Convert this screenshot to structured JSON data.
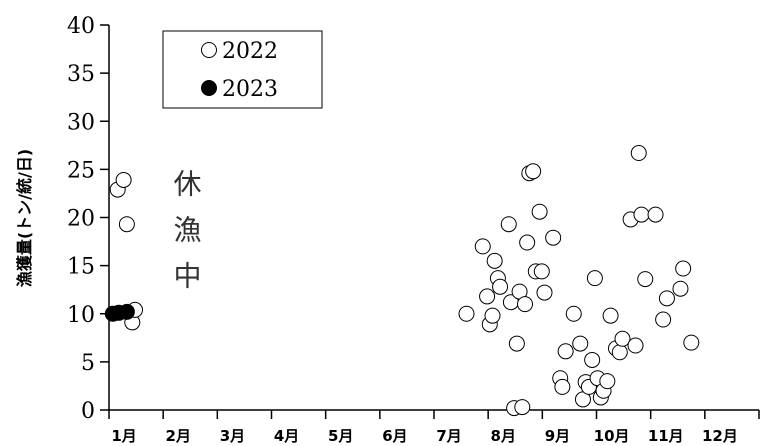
{
  "chart_data": {
    "type": "scatter",
    "title": "",
    "xlabel": "",
    "ylabel": "漁獲量(トン/統/日)",
    "ylim": [
      0,
      40
    ],
    "yticks": [
      0,
      5,
      10,
      15,
      20,
      25,
      30,
      35,
      40
    ],
    "xlim": [
      1,
      13
    ],
    "month_labels": [
      "1月",
      "2月",
      "3月",
      "4月",
      "5月",
      "6月",
      "7月",
      "8月",
      "9月",
      "10月",
      "11月",
      "12月"
    ],
    "grid": false,
    "legend": "top-left",
    "annotation": {
      "text": "休漁中",
      "x": 2.45,
      "y": 22.5
    },
    "series": [
      {
        "name": "2022",
        "marker": "open-circle",
        "points": [
          [
            1.16,
            22.9
          ],
          [
            1.27,
            23.9
          ],
          [
            1.33,
            19.3
          ],
          [
            1.43,
            9.1
          ],
          [
            1.48,
            10.4
          ],
          [
            7.6,
            10.0
          ],
          [
            7.9,
            17.0
          ],
          [
            7.98,
            11.8
          ],
          [
            8.03,
            8.9
          ],
          [
            8.08,
            9.8
          ],
          [
            8.12,
            15.5
          ],
          [
            8.18,
            13.7
          ],
          [
            8.22,
            12.8
          ],
          [
            8.38,
            19.3
          ],
          [
            8.42,
            11.2
          ],
          [
            8.48,
            0.2
          ],
          [
            8.53,
            6.9
          ],
          [
            8.58,
            12.3
          ],
          [
            8.63,
            0.3
          ],
          [
            8.68,
            11.0
          ],
          [
            8.72,
            17.4
          ],
          [
            8.76,
            24.6
          ],
          [
            8.83,
            24.8
          ],
          [
            8.88,
            14.4
          ],
          [
            8.95,
            20.6
          ],
          [
            8.99,
            14.4
          ],
          [
            9.04,
            12.2
          ],
          [
            9.2,
            17.9
          ],
          [
            9.33,
            3.3
          ],
          [
            9.37,
            2.4
          ],
          [
            9.43,
            6.1
          ],
          [
            9.58,
            10.0
          ],
          [
            9.7,
            6.9
          ],
          [
            9.75,
            1.1
          ],
          [
            9.8,
            2.9
          ],
          [
            9.86,
            2.4
          ],
          [
            9.92,
            5.2
          ],
          [
            9.97,
            13.7
          ],
          [
            10.02,
            3.3
          ],
          [
            10.08,
            1.3
          ],
          [
            10.13,
            2.0
          ],
          [
            10.2,
            3.0
          ],
          [
            10.26,
            9.8
          ],
          [
            10.36,
            6.4
          ],
          [
            10.43,
            6.0
          ],
          [
            10.48,
            7.4
          ],
          [
            10.63,
            19.8
          ],
          [
            10.72,
            6.7
          ],
          [
            10.78,
            26.7
          ],
          [
            10.83,
            20.3
          ],
          [
            10.9,
            13.6
          ],
          [
            11.09,
            20.3
          ],
          [
            11.23,
            9.4
          ],
          [
            11.3,
            11.6
          ],
          [
            11.55,
            12.6
          ],
          [
            11.6,
            14.7
          ],
          [
            11.75,
            7.0
          ]
        ]
      },
      {
        "name": "2023",
        "marker": "filled-circle",
        "points": [
          [
            1.07,
            10.0
          ],
          [
            1.18,
            10.1
          ],
          [
            1.33,
            10.2
          ]
        ]
      }
    ]
  }
}
